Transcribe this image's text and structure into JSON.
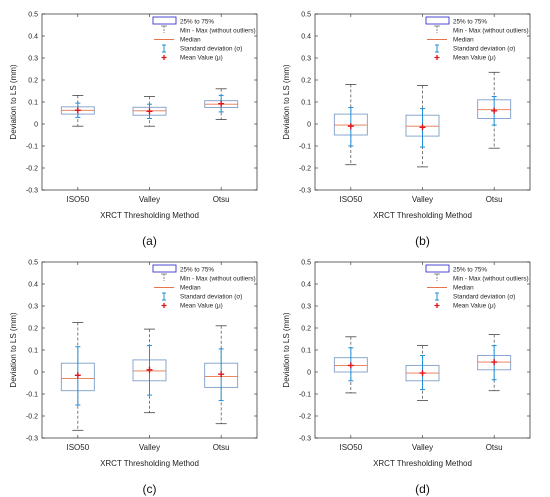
{
  "chart_data": [
    {
      "type": "box",
      "caption": "(a)",
      "ylabel": "Deviation to LS (mm)",
      "xlabel": "XRCT Thresholding Method",
      "ylim": [
        -0.3,
        0.5
      ],
      "yticks": [
        "-0.3",
        "-0.2",
        "-0.1",
        "0",
        "0.1",
        "0.2",
        "0.3",
        "0.4",
        "0.5"
      ],
      "categories": [
        "ISO50",
        "Valley",
        "Otsu"
      ],
      "q1": [
        0.045,
        0.04,
        0.075
      ],
      "median": [
        0.062,
        0.06,
        0.09
      ],
      "q3": [
        0.078,
        0.076,
        0.106
      ],
      "min": [
        -0.01,
        -0.01,
        0.02
      ],
      "max": [
        0.13,
        0.125,
        0.16
      ],
      "mean": [
        0.062,
        0.058,
        0.092
      ],
      "std_low": [
        0.03,
        0.025,
        0.055
      ],
      "std_high": [
        0.095,
        0.09,
        0.13
      ]
    },
    {
      "type": "box",
      "caption": "(b)",
      "ylabel": "Deviation to LS (mm)",
      "xlabel": "XRCT Thresholding Method",
      "ylim": [
        -0.3,
        0.5
      ],
      "yticks": [
        "-0.3",
        "-0.2",
        "-0.1",
        "0",
        "0.1",
        "0.2",
        "0.3",
        "0.4",
        "0.5"
      ],
      "categories": [
        "ISO50",
        "Valley",
        "Otsu"
      ],
      "q1": [
        -0.05,
        -0.055,
        0.025
      ],
      "median": [
        -0.005,
        -0.01,
        0.065
      ],
      "q3": [
        0.045,
        0.04,
        0.11
      ],
      "min": [
        -0.185,
        -0.195,
        -0.11
      ],
      "max": [
        0.18,
        0.175,
        0.235
      ],
      "mean": [
        -0.01,
        -0.015,
        0.06
      ],
      "std_low": [
        -0.1,
        -0.105,
        -0.005
      ],
      "std_high": [
        0.075,
        0.07,
        0.125
      ]
    },
    {
      "type": "box",
      "caption": "(c)",
      "ylabel": "Deviation to LS (mm)",
      "xlabel": "XRCT Thresholding Method",
      "ylim": [
        -0.3,
        0.5
      ],
      "yticks": [
        "-0.3",
        "-0.2",
        "-0.1",
        "0",
        "0.1",
        "0.2",
        "0.3",
        "0.4",
        "0.5"
      ],
      "categories": [
        "ISO50",
        "Valley",
        "Otsu"
      ],
      "q1": [
        -0.085,
        -0.04,
        -0.07
      ],
      "median": [
        -0.03,
        0.005,
        -0.02
      ],
      "q3": [
        0.04,
        0.055,
        0.04
      ],
      "min": [
        -0.265,
        -0.185,
        -0.235
      ],
      "max": [
        0.225,
        0.195,
        0.21
      ],
      "mean": [
        -0.015,
        0.01,
        -0.01
      ],
      "std_low": [
        -0.15,
        -0.105,
        -0.13
      ],
      "std_high": [
        0.115,
        0.12,
        0.105
      ]
    },
    {
      "type": "box",
      "caption": "(d)",
      "ylabel": "Deviation to LS (mm)",
      "xlabel": "XRCT Thresholding Method",
      "ylim": [
        -0.3,
        0.5
      ],
      "yticks": [
        "-0.3",
        "-0.2",
        "-0.1",
        "0",
        "0.1",
        "0.2",
        "0.3",
        "0.4",
        "0.5"
      ],
      "categories": [
        "ISO50",
        "Valley",
        "Otsu"
      ],
      "q1": [
        0.0,
        -0.04,
        0.01
      ],
      "median": [
        0.03,
        -0.005,
        0.045
      ],
      "q3": [
        0.065,
        0.03,
        0.075
      ],
      "min": [
        -0.095,
        -0.13,
        -0.085
      ],
      "max": [
        0.16,
        0.12,
        0.17
      ],
      "mean": [
        0.03,
        -0.005,
        0.045
      ],
      "std_low": [
        -0.04,
        -0.08,
        -0.035
      ],
      "std_high": [
        0.11,
        0.075,
        0.12
      ]
    }
  ],
  "legend": {
    "box_label": "25% to 75%",
    "range_label": "Min - Max (without outliers)",
    "median_label": "Median",
    "std_label": "Standard deviation (σ)",
    "mean_label": "Mean Value (μ)"
  },
  "colors": {
    "box": "#7f9ec8",
    "box_legend": "#3a35c8",
    "median": "#e8744c",
    "whisker": "#444444",
    "std": "#1f8fd8",
    "mean": "#e0141e",
    "axis": "#262626"
  }
}
